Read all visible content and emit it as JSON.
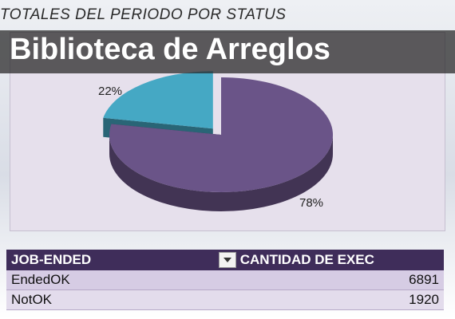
{
  "page": {
    "header_title": "TOTALES DEL PERIODO POR STATUS",
    "banner": "Biblioteca de Arreglos"
  },
  "chart_data": {
    "type": "pie",
    "title": "TOTALES DEL PERIODO POR STATUS",
    "slices": [
      {
        "label": "EndedOK",
        "value": 78,
        "display": "78%",
        "color": "#6a5488"
      },
      {
        "label": "NotOK",
        "value": 22,
        "display": "22%",
        "color": "#45a8c4"
      }
    ],
    "exploded": "NotOK",
    "legend": "none"
  },
  "table": {
    "headers": [
      "JOB-ENDED",
      "CANTIDAD DE EXEC"
    ],
    "rows": [
      {
        "name": "EndedOK",
        "count": "6891"
      },
      {
        "name": "NotOK",
        "count": "1920"
      }
    ]
  },
  "colors": {
    "header_bg": "#3f2d5a",
    "panel_bg": "#e6e0ec",
    "endedok": "#6a5488",
    "notok": "#45a8c4"
  }
}
